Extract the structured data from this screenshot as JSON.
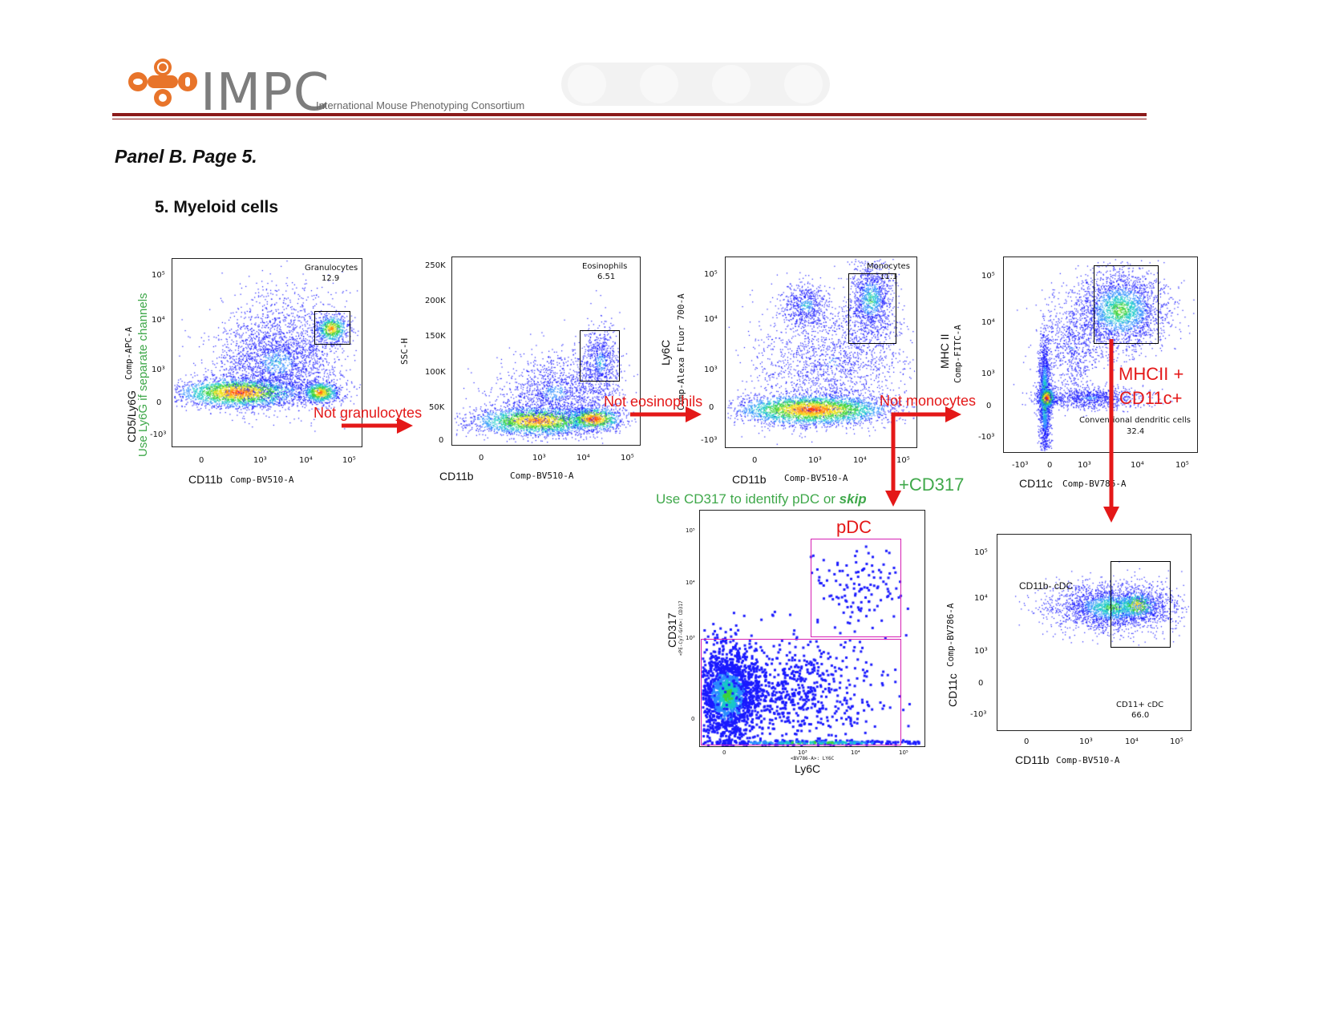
{
  "header": {
    "logo_text": "IMPC",
    "logo_subtitle": "International Mouse Phenotyping Consortium"
  },
  "panel_heading": "Panel B. Page 5.",
  "section_title": "5. Myeloid cells",
  "plots": {
    "granulocytes": {
      "gate_name": "Granulocytes",
      "gate_value": "12.9",
      "x_label": "CD11b",
      "x_channel": "Comp-BV510-A",
      "y_label": "CD5/Ly6G",
      "y_channel": "Comp-APC-A",
      "y_note": "Use Ly6G if separate channels"
    },
    "eosinophils": {
      "gate_name": "Eosinophils",
      "gate_value": "6.51",
      "x_label": "CD11b",
      "x_channel": "Comp-BV510-A",
      "y_label": "SSC-H",
      "y_ticks": [
        "250K",
        "200K",
        "150K",
        "100K",
        "50K",
        "0"
      ]
    },
    "monocytes": {
      "gate_name": "Monocytes",
      "gate_value": "11.1",
      "x_label": "CD11b",
      "x_channel": "Comp-BV510-A",
      "y_label": "Ly6C",
      "y_channel": "Comp-Alexa Fluor 700-A"
    },
    "conventional_dc": {
      "gate_name": "Conventional dendritic cells",
      "gate_value": "32.4",
      "x_label": "CD11c",
      "x_channel": "Comp-BV786-A",
      "y_label": "MHC II",
      "y_channel": "Comp-FITC-A"
    },
    "pdc": {
      "gate_name": "pDC",
      "x_label": "Ly6C",
      "x_channel": "<BV786-A>: LY6C",
      "y_label": "CD317",
      "y_channel": "<PE-Cy7-GrA>: CD317"
    },
    "cd11b_cdc": {
      "gate_left_name": "CD11b- cDC",
      "gate_name": "CD11+ cDC",
      "gate_value": "66.0",
      "x_label": "CD11b",
      "x_channel": "Comp-BV510-A",
      "y_label": "CD11c",
      "y_channel": "Comp-BV786-A"
    }
  },
  "arrows": {
    "not_granulocytes": "Not granulocytes",
    "not_eosinophils": "Not eosinophils",
    "not_monocytes": "Not monocytes",
    "plus_cd317": "+CD317",
    "mhcii_line1": "MHCII +",
    "mhcii_line2": "CD11c+"
  },
  "notes": {
    "use_cd317": "Use CD317 to identify pDC or",
    "skip": "skip"
  },
  "colors": {
    "arrow": "#e41818",
    "note_green": "#3fa84a",
    "brand_orange": "#e8742a",
    "rule": "#8b1a1a",
    "gate_pink": "#d61fb4"
  },
  "log_ticks": {
    "x": [
      "0",
      "10³",
      "10⁴",
      "10⁵"
    ],
    "y": [
      "10⁵",
      "10⁴",
      "10³",
      "0",
      "-10³"
    ],
    "x_cdc": [
      "-10³",
      "0",
      "10³",
      "10⁴",
      "10⁵"
    ]
  }
}
